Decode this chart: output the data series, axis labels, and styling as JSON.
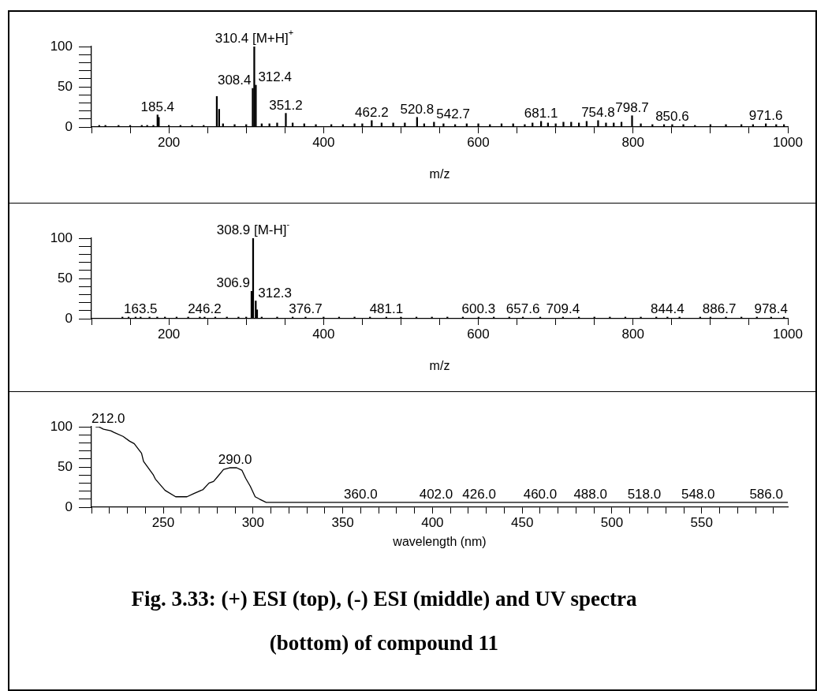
{
  "chart_data": [
    {
      "type": "bar",
      "xlabel": "m/z",
      "color": "#000000",
      "x": [
        110,
        118,
        135,
        150,
        165,
        172,
        180,
        185.4,
        187,
        200,
        215,
        230,
        245,
        262,
        265,
        270,
        285,
        300,
        308.4,
        310.4,
        312.4,
        320,
        330,
        340,
        351.2,
        360,
        375,
        390,
        410,
        425,
        440,
        450,
        462.2,
        475,
        490,
        505,
        520.8,
        530,
        542.7,
        555,
        570,
        585,
        600,
        615,
        630,
        645,
        660,
        670,
        681.1,
        690,
        700,
        710,
        720,
        730,
        740,
        754.8,
        765,
        775,
        785,
        798.7,
        810,
        825,
        840,
        850.6,
        865,
        880,
        900,
        920,
        940,
        955,
        971.6,
        985,
        995
      ],
      "values": [
        2,
        2,
        2,
        2,
        2,
        2,
        2,
        15,
        12,
        2,
        2,
        2,
        2,
        38,
        22,
        4,
        3,
        3,
        48,
        100,
        52,
        4,
        4,
        5,
        17,
        5,
        4,
        3,
        3,
        3,
        4,
        4,
        8,
        5,
        5,
        5,
        12,
        4,
        6,
        4,
        3,
        4,
        4,
        3,
        4,
        4,
        3,
        5,
        7,
        5,
        4,
        6,
        6,
        5,
        7,
        8,
        5,
        5,
        6,
        14,
        4,
        3,
        3,
        3,
        3,
        2,
        3,
        3,
        3,
        3,
        4,
        3,
        3
      ],
      "xlim": [
        100,
        1000
      ],
      "xticks": [
        {
          "value": 100,
          "label": null
        },
        {
          "value": 150,
          "label": null
        },
        200,
        {
          "value": 250,
          "label": null
        },
        {
          "value": 300,
          "label": null
        },
        {
          "value": 350,
          "label": null
        },
        400,
        {
          "value": 450,
          "label": null
        },
        {
          "value": 500,
          "label": null
        },
        {
          "value": 550,
          "label": null
        },
        600,
        {
          "value": 650,
          "label": null
        },
        {
          "value": 700,
          "label": null
        },
        {
          "value": 750,
          "label": null
        },
        800,
        {
          "value": 850,
          "label": null
        },
        {
          "value": 900,
          "label": null
        },
        {
          "value": 950,
          "label": null
        },
        1000
      ],
      "ylim": [
        0,
        100
      ],
      "yticks": [
        0,
        {
          "value": 10,
          "label": null
        },
        {
          "value": 20,
          "label": null
        },
        {
          "value": 30,
          "label": null
        },
        {
          "value": 40,
          "label": null
        },
        50,
        {
          "value": 60,
          "label": null
        },
        {
          "value": 70,
          "label": null
        },
        {
          "value": 80,
          "label": null
        },
        {
          "value": 90,
          "label": null
        },
        100
      ],
      "annotations": [
        {
          "text": "310.4 [M+H]$^{+}$",
          "x": 310.4,
          "y": 100
        },
        {
          "text": "312.4",
          "x": 312.4,
          "y": 52
        },
        {
          "text": "308.4",
          "x": 308.4,
          "y": 48
        },
        {
          "text": "351.2",
          "x": 351.2,
          "y": 17
        },
        {
          "text": "185.4",
          "x": 185.4,
          "y": 15
        },
        {
          "text": "798.7",
          "x": 798.7,
          "y": 14
        },
        {
          "text": "520.8",
          "x": 520.8,
          "y": 12
        },
        {
          "text": "462.2",
          "x": 462.2,
          "y": 8
        },
        {
          "text": "754.8",
          "x": 754.8,
          "y": 8
        },
        {
          "text": "681.1",
          "x": 681.1,
          "y": 7
        },
        {
          "text": "542.7",
          "x": 542.7,
          "y": 6
        },
        {
          "text": "971.6",
          "x": 971.6,
          "y": 4
        },
        {
          "text": "850.6",
          "x": 850.6,
          "y": 3
        }
      ]
    },
    {
      "type": "bar",
      "xlabel": "m/z",
      "color": "#000000",
      "x": [
        140,
        148,
        157,
        163.5,
        175,
        185,
        195,
        210,
        225,
        240,
        246.2,
        260,
        275,
        290,
        300,
        306.9,
        308.9,
        312.3,
        314,
        320,
        340,
        360,
        376.7,
        400,
        420,
        440,
        460,
        481.1,
        500,
        520,
        540,
        560,
        580,
        600.3,
        620,
        640,
        657.6,
        680,
        709.4,
        730,
        750,
        770,
        790,
        810,
        830,
        844.4,
        860,
        886.7,
        900,
        920,
        940,
        960,
        978.4,
        995
      ],
      "values": [
        2,
        2,
        2,
        2,
        2,
        2,
        2,
        2,
        2,
        2,
        2,
        2,
        2,
        2,
        2,
        34,
        100,
        22,
        11,
        2,
        2,
        2,
        2,
        2,
        2,
        2,
        2,
        2,
        2,
        2,
        2,
        2,
        2,
        2,
        2,
        2,
        2,
        2,
        2,
        2,
        2,
        2,
        2,
        2,
        2,
        2,
        2,
        2,
        2,
        2,
        2,
        2,
        2,
        2
      ],
      "xlim": [
        100,
        1000
      ],
      "xticks": [
        {
          "value": 100,
          "label": null
        },
        {
          "value": 150,
          "label": null
        },
        200,
        {
          "value": 250,
          "label": null
        },
        {
          "value": 300,
          "label": null
        },
        {
          "value": 350,
          "label": null
        },
        400,
        {
          "value": 450,
          "label": null
        },
        {
          "value": 500,
          "label": null
        },
        {
          "value": 550,
          "label": null
        },
        600,
        {
          "value": 650,
          "label": null
        },
        {
          "value": 700,
          "label": null
        },
        {
          "value": 750,
          "label": null
        },
        800,
        {
          "value": 850,
          "label": null
        },
        {
          "value": 900,
          "label": null
        },
        {
          "value": 950,
          "label": null
        },
        1000
      ],
      "ylim": [
        0,
        100
      ],
      "yticks": [
        0,
        {
          "value": 10,
          "label": null
        },
        {
          "value": 20,
          "label": null
        },
        {
          "value": 30,
          "label": null
        },
        {
          "value": 40,
          "label": null
        },
        50,
        {
          "value": 60,
          "label": null
        },
        {
          "value": 70,
          "label": null
        },
        {
          "value": 80,
          "label": null
        },
        {
          "value": 90,
          "label": null
        },
        100
      ],
      "annotations": [
        {
          "text": "308.9 [M-H]$^{-}$",
          "x": 308.9,
          "y": 100
        },
        {
          "text": "306.9",
          "x": 306.9,
          "y": 34
        },
        {
          "text": "312.3",
          "x": 312.3,
          "y": 22
        },
        {
          "text": "163.5",
          "x": 163.5,
          "y": 2
        },
        {
          "text": "246.2",
          "x": 246.2,
          "y": 2
        },
        {
          "text": "376.7",
          "x": 376.7,
          "y": 2
        },
        {
          "text": "481.1",
          "x": 481.1,
          "y": 2
        },
        {
          "text": "600.3",
          "x": 600.3,
          "y": 2
        },
        {
          "text": "657.6",
          "x": 657.6,
          "y": 2
        },
        {
          "text": "709.4",
          "x": 709.4,
          "y": 2
        },
        {
          "text": "844.4",
          "x": 844.4,
          "y": 2
        },
        {
          "text": "886.7",
          "x": 886.7,
          "y": 2
        },
        {
          "text": "978.4",
          "x": 978.4,
          "y": 2
        }
      ]
    },
    {
      "type": "line",
      "xlabel": "wavelength (nm)",
      "color": "#000000",
      "marker": "none",
      "x": [
        212.3,
        214,
        216.7,
        220.8,
        222.5,
        227.6,
        231.3,
        233.8,
        237.9,
        239,
        244.5,
        245.6,
        251,
        256.9,
        263.2,
        267.1,
        272.2,
        275.5,
        278,
        280.3,
        283.6,
        286.9,
        290.9,
        293.8,
        295.9,
        298.5,
        301.2,
        303.7,
        307.3,
        598
      ],
      "values": [
        100,
        100,
        97,
        95,
        93,
        88,
        82,
        79,
        67,
        57,
        40,
        35,
        21,
        13,
        13,
        17,
        22,
        30,
        32,
        38,
        47,
        49,
        49,
        46,
        36,
        26,
        13,
        10,
        6,
        6
      ],
      "xlim": [
        210,
        598
      ],
      "xticks": [
        {
          "value": 210,
          "label": null
        },
        {
          "value": 220,
          "label": null
        },
        {
          "value": 230,
          "label": null
        },
        {
          "value": 240,
          "label": null
        },
        250,
        {
          "value": 260,
          "label": null
        },
        {
          "value": 270,
          "label": null
        },
        {
          "value": 280,
          "label": null
        },
        {
          "value": 290,
          "label": null
        },
        300,
        {
          "value": 310,
          "label": null
        },
        {
          "value": 320,
          "label": null
        },
        {
          "value": 330,
          "label": null
        },
        {
          "value": 340,
          "label": null
        },
        350,
        {
          "value": 360,
          "label": null
        },
        {
          "value": 370,
          "label": null
        },
        {
          "value": 380,
          "label": null
        },
        {
          "value": 390,
          "label": null
        },
        400,
        {
          "value": 410,
          "label": null
        },
        {
          "value": 420,
          "label": null
        },
        {
          "value": 430,
          "label": null
        },
        {
          "value": 440,
          "label": null
        },
        450,
        {
          "value": 460,
          "label": null
        },
        {
          "value": 470,
          "label": null
        },
        {
          "value": 480,
          "label": null
        },
        {
          "value": 490,
          "label": null
        },
        500,
        {
          "value": 510,
          "label": null
        },
        {
          "value": 520,
          "label": null
        },
        {
          "value": 530,
          "label": null
        },
        {
          "value": 540,
          "label": null
        },
        550,
        {
          "value": 560,
          "label": null
        },
        {
          "value": 570,
          "label": null
        },
        {
          "value": 580,
          "label": null
        },
        {
          "value": 590,
          "label": null
        }
      ],
      "ylim": [
        0,
        100
      ],
      "yticks": [
        0,
        {
          "value": 10,
          "label": null
        },
        {
          "value": 20,
          "label": null
        },
        {
          "value": 30,
          "label": null
        },
        {
          "value": 40,
          "label": null
        },
        50,
        {
          "value": 60,
          "label": null
        },
        {
          "value": 70,
          "label": null
        },
        {
          "value": 80,
          "label": null
        },
        {
          "value": 90,
          "label": null
        },
        100
      ],
      "annotations": [
        {
          "text": "212.0",
          "x": 212,
          "y": 100
        },
        {
          "text": "290.0",
          "x": 290,
          "y": 49
        },
        {
          "text": "360.0",
          "x": 360,
          "y": 6
        },
        {
          "text": "402.0",
          "x": 402,
          "y": 6
        },
        {
          "text": "426.0",
          "x": 426,
          "y": 6
        },
        {
          "text": "460.0",
          "x": 460,
          "y": 6
        },
        {
          "text": "488.0",
          "x": 488,
          "y": 6
        },
        {
          "text": "518.0",
          "x": 518,
          "y": 6
        },
        {
          "text": "548.0",
          "x": 548,
          "y": 6
        },
        {
          "text": "586.0",
          "x": 586,
          "y": 6
        },
        "Fig. 3.33: (+) ESI (top), (-) ESI (middle) and UV spectra (bottom) of compound 11"
      ]
    }
  ]
}
